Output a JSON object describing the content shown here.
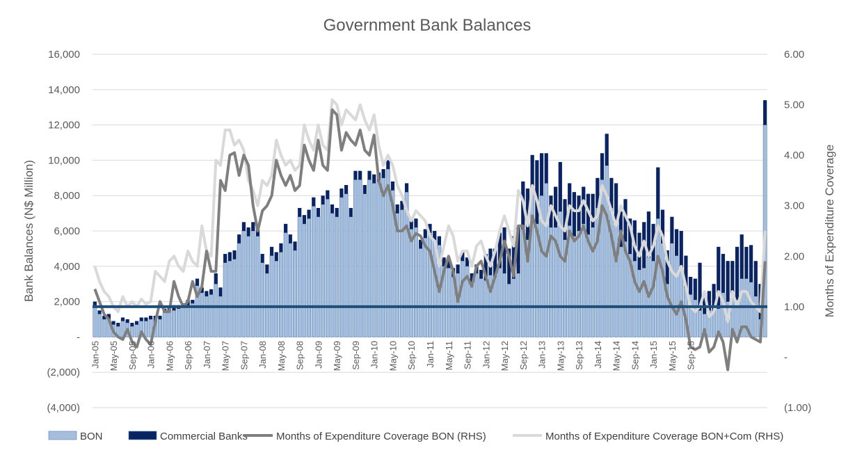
{
  "chart_data": {
    "type": "bar",
    "title": "Government Bank Balances",
    "ylabel": "Bank Balances (N$ Million)",
    "y2label": "Months of Expenditure Coverage",
    "ylim": [
      -4000,
      16000
    ],
    "y2lim": [
      -1,
      6
    ],
    "y_ticks": [
      "(4,000)",
      "(2,000)",
      "-",
      "2,000",
      "4,000",
      "6,000",
      "8,000",
      "10,000",
      "12,000",
      "14,000",
      "16,000"
    ],
    "y2_ticks": [
      "(1.00)",
      "-",
      "1.00",
      "2.00",
      "3.00",
      "4.00",
      "5.00",
      "6.00"
    ],
    "x_tick_labels": [
      "Jan-05",
      "May-05",
      "Sep-05",
      "Jan-06",
      "May-06",
      "Sep-06",
      "Jan-07",
      "May-07",
      "Sep-07",
      "Jan-08",
      "May-08",
      "Sep-08",
      "Jan-09",
      "May-09",
      "Sep-09",
      "Jan-10",
      "May-10",
      "Sep-10",
      "Jan-11",
      "May-11",
      "Sep-11",
      "Jan-12",
      "May-12",
      "Sep-12",
      "Jan-13",
      "May-13",
      "Sep-13",
      "Jan-14",
      "May-14",
      "Sep-14",
      "Jan-15",
      "May-15",
      "Sep-15"
    ],
    "grid": true,
    "legend_position": "bottom",
    "reference_line_rhs": 1.0,
    "series": [
      {
        "name": "BON",
        "kind": "bar-stacked",
        "color": "#a6bddb",
        "values": [
          1800,
          1300,
          1000,
          1000,
          700,
          600,
          900,
          800,
          600,
          700,
          900,
          900,
          1000,
          900,
          1000,
          1400,
          1500,
          1500,
          1600,
          1700,
          1800,
          1900,
          2900,
          2500,
          2300,
          2400,
          3000,
          2300,
          4200,
          4300,
          4400,
          5300,
          6000,
          5700,
          6000,
          5700,
          4200,
          3600,
          4600,
          4300,
          4800,
          5900,
          5300,
          4900,
          6800,
          6400,
          6700,
          7400,
          6800,
          7500,
          7800,
          7000,
          6800,
          7900,
          8100,
          6800,
          8900,
          8900,
          8100,
          8900,
          8700,
          8800,
          9000,
          9500,
          8300,
          7000,
          7200,
          8200,
          6100,
          6200,
          5000,
          5600,
          5900,
          5500,
          5200,
          4000,
          3900,
          3400,
          3600,
          4300,
          4000,
          3100,
          3600,
          3300,
          3200,
          3500,
          3400,
          3900,
          3600,
          3000,
          3300,
          3600,
          6100,
          5500,
          8300,
          6400,
          8000,
          8700,
          6200,
          6200,
          7100,
          5500,
          6300,
          5700,
          6000,
          6400,
          5800,
          6200,
          7300,
          8900,
          9700,
          7300,
          6300,
          5100,
          5400,
          4700,
          4300,
          3800,
          3900,
          4500,
          4300,
          6700,
          5300,
          3000,
          5300,
          4600,
          3800,
          2800,
          2400,
          2100,
          1500,
          1300,
          1500,
          1500,
          1600,
          2500,
          2000,
          2500,
          2100,
          3300,
          3300,
          3100,
          2300,
          1000,
          12000
        ]
      },
      {
        "name": "Commercial Banks",
        "kind": "bar-stacked",
        "color": "#0a2463",
        "values": [
          200,
          200,
          200,
          300,
          200,
          200,
          200,
          200,
          200,
          200,
          200,
          200,
          200,
          300,
          200,
          200,
          200,
          300,
          200,
          200,
          300,
          200,
          400,
          300,
          300,
          300,
          600,
          500,
          500,
          500,
          500,
          500,
          500,
          500,
          500,
          500,
          500,
          500,
          500,
          500,
          500,
          500,
          500,
          500,
          500,
          500,
          500,
          500,
          500,
          500,
          500,
          500,
          500,
          500,
          500,
          500,
          500,
          500,
          500,
          500,
          500,
          500,
          500,
          500,
          500,
          500,
          500,
          500,
          500,
          500,
          500,
          500,
          500,
          500,
          500,
          500,
          500,
          500,
          500,
          500,
          500,
          500,
          500,
          500,
          1500,
          1500,
          1600,
          2000,
          2600,
          2000,
          2400,
          2600,
          2700,
          2900,
          2000,
          3600,
          2400,
          1700,
          1800,
          2300,
          2800,
          2300,
          2400,
          2500,
          2000,
          2100,
          2300,
          1900,
          1700,
          1500,
          1800,
          1700,
          2400,
          2000,
          2400,
          2000,
          2300,
          2100,
          2600,
          2600,
          2100,
          2900,
          1900,
          1900,
          1500,
          1500,
          2200,
          1800,
          1000,
          1200,
          2700,
          1200,
          1100,
          1500,
          3500,
          2200,
          2300,
          1800,
          3000,
          2500,
          1800,
          2100,
          2000,
          2000,
          1400
        ]
      },
      {
        "name": "Months of Expenditure Coverage BON (RHS)",
        "kind": "line",
        "axis": "right",
        "color": "#7f7f7f",
        "values": [
          1.35,
          1.1,
          0.85,
          0.75,
          0.5,
          0.4,
          0.35,
          0.55,
          0.3,
          0.2,
          0.5,
          0.35,
          0.25,
          0.7,
          1.1,
          0.9,
          0.9,
          1.5,
          1.2,
          1.0,
          1.1,
          1.5,
          1.2,
          1.4,
          2.1,
          1.7,
          1.7,
          3.5,
          3.3,
          4.0,
          4.05,
          3.6,
          4.0,
          3.8,
          3.0,
          2.5,
          2.9,
          3.0,
          3.2,
          3.9,
          3.6,
          3.4,
          3.6,
          3.3,
          3.4,
          4.2,
          3.9,
          3.7,
          4.3,
          3.8,
          3.7,
          4.9,
          4.8,
          4.1,
          4.45,
          4.3,
          4.2,
          4.5,
          4.1,
          4.0,
          4.4,
          3.5,
          3.2,
          3.4,
          3.0,
          2.5,
          2.5,
          2.6,
          2.3,
          2.45,
          2.4,
          2.2,
          2.1,
          1.7,
          1.3,
          1.7,
          2.0,
          1.7,
          1.1,
          1.5,
          1.6,
          1.4,
          1.8,
          1.9,
          1.6,
          1.3,
          1.6,
          1.9,
          2.3,
          2.0,
          1.6,
          2.6,
          2.6,
          1.9,
          2.8,
          2.5,
          2.1,
          2.0,
          2.4,
          2.3,
          2.0,
          1.9,
          2.5,
          2.3,
          2.4,
          2.6,
          2.3,
          2.1,
          2.3,
          3.0,
          2.8,
          2.4,
          1.9,
          2.5,
          2.1,
          1.9,
          1.5,
          1.3,
          1.5,
          1.2,
          1.4,
          2.0,
          1.7,
          1.2,
          1.0,
          0.85,
          1.1,
          0.75,
          0.2,
          0.15,
          0.2,
          0.55,
          0.1,
          0.2,
          0.5,
          0.3,
          -0.25,
          0.55,
          0.3,
          0.6,
          0.6,
          0.4,
          0.35,
          0.3,
          1.9
        ]
      },
      {
        "name": "Months of Expenditure Coverage BON+Com (RHS)",
        "kind": "line",
        "axis": "right",
        "color": "#d9d9d9",
        "values": [
          1.8,
          1.5,
          1.3,
          1.2,
          1.0,
          0.9,
          1.2,
          1.0,
          1.1,
          1.0,
          1.15,
          1.05,
          1.1,
          1.7,
          1.6,
          1.5,
          1.9,
          2.0,
          1.8,
          1.7,
          2.1,
          1.9,
          1.8,
          2.6,
          2.1,
          2.0,
          3.9,
          3.8,
          4.5,
          4.5,
          4.2,
          4.3,
          4.1,
          3.5,
          3.3,
          3.0,
          3.5,
          3.4,
          3.6,
          4.3,
          4.0,
          3.8,
          3.9,
          3.7,
          3.8,
          4.6,
          4.3,
          4.1,
          4.6,
          4.2,
          4.1,
          5.1,
          5.0,
          4.6,
          4.9,
          4.8,
          4.7,
          5.0,
          4.7,
          4.5,
          4.8,
          4.2,
          3.8,
          4.0,
          3.8,
          3.4,
          3.2,
          2.9,
          2.7,
          2.9,
          2.8,
          2.7,
          2.4,
          2.3,
          1.8,
          2.2,
          2.6,
          2.4,
          1.9,
          2.1,
          2.1,
          1.8,
          2.2,
          2.3,
          2.0,
          1.8,
          2.1,
          2.5,
          2.8,
          2.5,
          2.2,
          3.3,
          3.1,
          2.6,
          3.4,
          3.1,
          2.7,
          2.6,
          3.0,
          2.8,
          2.6,
          2.5,
          3.0,
          2.9,
          2.9,
          3.1,
          2.9,
          2.7,
          2.8,
          3.4,
          3.2,
          2.9,
          2.6,
          3.0,
          2.8,
          2.6,
          2.2,
          2.0,
          2.3,
          2.0,
          2.2,
          2.6,
          2.4,
          1.9,
          1.7,
          1.6,
          1.8,
          1.4,
          1.0,
          0.9,
          1.0,
          1.3,
          0.8,
          0.9,
          1.3,
          1.1,
          0.7,
          1.3,
          1.0,
          1.3,
          1.3,
          1.1,
          1.0,
          0.9,
          2.5
        ]
      }
    ]
  }
}
